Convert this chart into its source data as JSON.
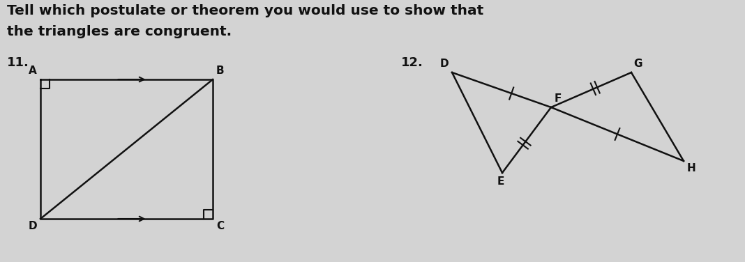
{
  "bg_color": "#d3d3d3",
  "title_line1": "Tell which postulate or theorem you would use to show that",
  "title_line2": "the triangles are congruent.",
  "title_fontsize": 14.5,
  "label11": "11.",
  "label12": "12.",
  "text_color": "#111111",
  "line_color": "#111111",
  "fig_width": 10.68,
  "fig_height": 3.76
}
